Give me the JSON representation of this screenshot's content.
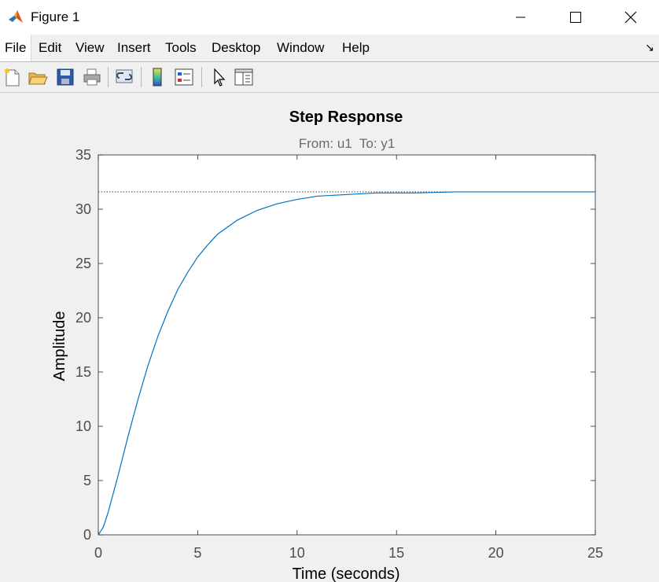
{
  "window": {
    "title": "Figure 1"
  },
  "menu": {
    "items": [
      "File",
      "Edit",
      "View",
      "Insert",
      "Tools",
      "Desktop",
      "Window",
      "Help"
    ]
  },
  "toolbar": {
    "icons": [
      "new-figure-icon",
      "open-file-icon",
      "save-icon",
      "print-icon",
      "link-plot-icon",
      "colorbar-icon",
      "legend-icon",
      "edit-plot-pointer-icon",
      "property-inspector-icon"
    ]
  },
  "colors": {
    "series": "#0072bd",
    "axis_text": "#4d4d4d",
    "background": "#f0f0f0"
  },
  "chart_data": {
    "type": "line",
    "title": "Step Response",
    "subtitle": "From: u1  To: y1",
    "xlabel": "Time (seconds)",
    "ylabel": "Amplitude",
    "xlim": [
      0,
      25
    ],
    "ylim": [
      0,
      35
    ],
    "xticks": [
      "0",
      "5",
      "10",
      "15",
      "20",
      "25"
    ],
    "yticks": [
      "0",
      "5",
      "10",
      "15",
      "20",
      "25",
      "30",
      "35"
    ],
    "grid": false,
    "steady_state": 31.6,
    "series": [
      {
        "x": [
          0,
          0.25,
          0.5,
          0.75,
          1,
          1.5,
          2,
          2.5,
          3,
          3.5,
          4,
          4.5,
          5,
          5.5,
          6,
          7,
          8,
          9,
          10,
          11,
          12,
          13,
          14,
          15,
          16,
          18,
          20,
          22,
          25
        ],
        "y": [
          0,
          0.7,
          2.1,
          3.8,
          5.5,
          9.1,
          12.5,
          15.6,
          18.3,
          20.6,
          22.6,
          24.2,
          25.6,
          26.7,
          27.7,
          29.0,
          29.9,
          30.5,
          30.9,
          31.2,
          31.3,
          31.4,
          31.5,
          31.5,
          31.5,
          31.6,
          31.6,
          31.6,
          31.6
        ]
      }
    ]
  }
}
